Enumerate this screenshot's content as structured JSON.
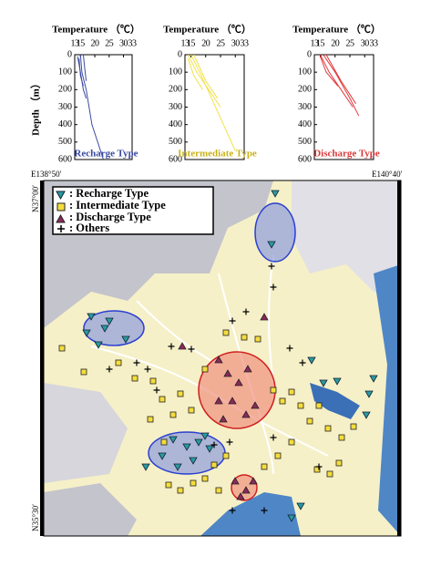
{
  "chart_data": [
    {
      "type": "line",
      "title": "Temperature （℃）",
      "ylabel": "Depth （m）",
      "annotation": "Recharge Type",
      "annotation_color": "#3a4aa0",
      "xlim": [
        13,
        33
      ],
      "xticks": [
        13,
        15,
        20,
        25,
        30,
        33
      ],
      "ylim": [
        0,
        600
      ],
      "yticks": [
        0,
        100,
        200,
        300,
        400,
        500,
        600
      ],
      "y_inverted": true,
      "series": [
        {
          "color": "#3a4aa0",
          "x": [
            14,
            15,
            16,
            17
          ],
          "values": [
            10,
            100,
            200,
            250
          ]
        },
        {
          "color": "#3a4aa0",
          "x": [
            15,
            15.5,
            17,
            19,
            23
          ],
          "values": [
            0,
            100,
            200,
            400,
            600
          ]
        },
        {
          "color": "#3a4aa0",
          "x": [
            14.5,
            15,
            16
          ],
          "values": [
            20,
            120,
            180
          ]
        },
        {
          "color": "#3a4aa0",
          "x": [
            16,
            16.5,
            17
          ],
          "values": [
            0,
            80,
            150
          ]
        }
      ]
    },
    {
      "type": "line",
      "title": "Temperature （℃）",
      "annotation": "Intermediate Type",
      "annotation_color": "#c9b21a",
      "xlim": [
        13,
        33
      ],
      "xticks": [
        13,
        15,
        20,
        25,
        30,
        33
      ],
      "ylim": [
        0,
        600
      ],
      "yticks": [
        0,
        100,
        200,
        300,
        400,
        500,
        600
      ],
      "y_inverted": true,
      "series": [
        {
          "color": "#f2e24a",
          "x": [
            14,
            17,
            21,
            25
          ],
          "values": [
            0,
            100,
            200,
            300
          ]
        },
        {
          "color": "#f2e24a",
          "x": [
            15,
            18,
            22,
            26,
            30
          ],
          "values": [
            0,
            100,
            250,
            400,
            550
          ]
        },
        {
          "color": "#f2e24a",
          "x": [
            14,
            16,
            19
          ],
          "values": [
            20,
            120,
            200
          ]
        },
        {
          "color": "#f2e24a",
          "x": [
            16,
            20,
            24
          ],
          "values": [
            0,
            150,
            250
          ]
        }
      ]
    },
    {
      "type": "line",
      "title": "Temperature （℃）",
      "annotation": "Discharge Type",
      "annotation_color": "#d8383a",
      "xlim": [
        13,
        33
      ],
      "xticks": [
        13,
        15,
        20,
        25,
        30,
        33
      ],
      "ylim": [
        0,
        600
      ],
      "yticks": [
        0,
        100,
        200,
        300,
        400,
        500,
        600
      ],
      "y_inverted": true,
      "series": [
        {
          "color": "#e0383a",
          "x": [
            15,
            18,
            22,
            26
          ],
          "values": [
            0,
            100,
            200,
            300
          ]
        },
        {
          "color": "#e0383a",
          "x": [
            16,
            20,
            25,
            28
          ],
          "values": [
            0,
            100,
            250,
            350
          ]
        },
        {
          "color": "#e0383a",
          "x": [
            15,
            17,
            21
          ],
          "values": [
            10,
            100,
            180
          ]
        },
        {
          "color": "#e0383a",
          "x": [
            17,
            22,
            27
          ],
          "values": [
            0,
            150,
            280
          ]
        }
      ]
    }
  ],
  "map": {
    "corner_labels": {
      "west": "E138°50′",
      "east": "E140°40′",
      "north": "N37°00′",
      "south": "N35°30′"
    },
    "legend": [
      ": Recharge Type",
      ": Intermediate Type",
      ": Discharge Type",
      ": Others"
    ]
  }
}
